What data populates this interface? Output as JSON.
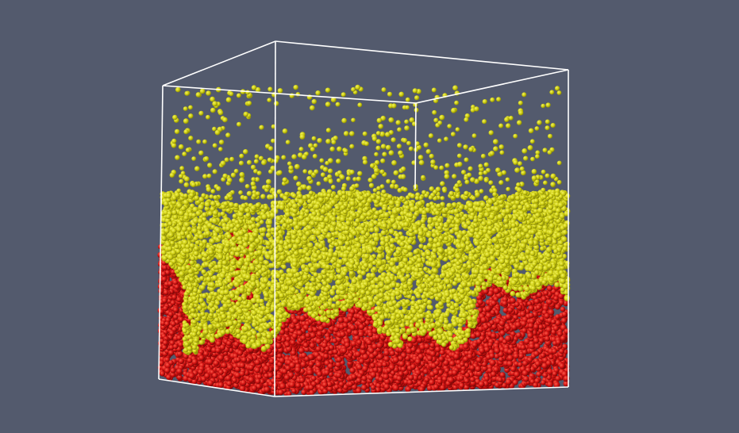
{
  "scene": {
    "description_type": "particle-simulation-render",
    "background_color": "#535a6d",
    "bounding_box_color": "#ffffff",
    "species": [
      {
        "name": "particles-light",
        "color": "#d4d410",
        "shade": "#8f8f08"
      },
      {
        "name": "particles-heavy",
        "color": "#d21010",
        "shade": "#7e0808"
      }
    ]
  }
}
